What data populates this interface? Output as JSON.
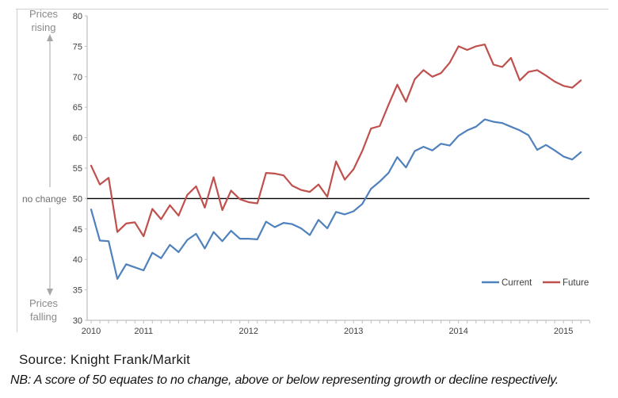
{
  "annotations": {
    "prices_rising_line1": "Prices",
    "prices_rising_line2": "rising",
    "no_change": "no change",
    "prices_falling_line1": "Prices",
    "prices_falling_line2": "falling",
    "label_color": "#8a8a8a",
    "arrow_color": "#a6a6a6"
  },
  "source_line": "Source: Knight Frank/Markit",
  "nb_line": "NB: A score of 50 equates to no change, above or below representing growth or decline respectively.",
  "legend": {
    "items": [
      {
        "label": "Current",
        "color": "#4F81BD"
      },
      {
        "label": "Future",
        "color": "#C0504D"
      }
    ],
    "text_color": "#404040",
    "position": "bottom-right-inside"
  },
  "chart_data": {
    "type": "line",
    "frequency": "monthly",
    "start_month": "2010-07",
    "end_month": "2015-03",
    "ylim": [
      30,
      80
    ],
    "yticks": [
      30,
      35,
      40,
      45,
      50,
      55,
      60,
      65,
      70,
      75,
      80
    ],
    "grid": false,
    "reference_line": {
      "value": 50,
      "label": "no change",
      "color": "#000000"
    },
    "axis_color": "#bfbfbf",
    "tick_label_color": "#404040",
    "x_year_labels": [
      {
        "label": "2010",
        "index": 0
      },
      {
        "label": "2011",
        "index": 6
      },
      {
        "label": "2012",
        "index": 18
      },
      {
        "label": "2013",
        "index": 30
      },
      {
        "label": "2014",
        "index": 42
      },
      {
        "label": "2015",
        "index": 54
      }
    ],
    "series": [
      {
        "name": "Current",
        "color": "#4F81BD",
        "values": [
          48.2,
          43.1,
          43.0,
          36.8,
          39.2,
          38.7,
          38.2,
          41.1,
          40.2,
          42.4,
          41.2,
          43.2,
          44.2,
          41.8,
          44.5,
          43.0,
          44.7,
          43.4,
          43.4,
          43.3,
          46.2,
          45.3,
          46.0,
          45.8,
          45.1,
          44.0,
          46.5,
          45.1,
          47.8,
          47.4,
          47.9,
          49.1,
          51.6,
          52.8,
          54.2,
          56.8,
          55.1,
          57.8,
          58.5,
          57.9,
          59.0,
          58.7,
          60.3,
          61.2,
          61.8,
          63.0,
          62.6,
          62.4,
          61.8,
          61.2,
          60.4,
          58.0,
          58.8,
          57.9,
          56.9,
          56.4,
          57.6
        ]
      },
      {
        "name": "Future",
        "color": "#C0504D",
        "values": [
          55.4,
          52.3,
          53.4,
          44.5,
          45.9,
          46.1,
          43.8,
          48.3,
          46.6,
          48.9,
          47.2,
          50.6,
          52.0,
          48.5,
          53.5,
          48.1,
          51.3,
          49.9,
          49.4,
          49.2,
          54.2,
          54.1,
          53.8,
          52.1,
          51.4,
          51.1,
          52.3,
          50.3,
          56.1,
          53.1,
          54.8,
          57.8,
          61.5,
          61.9,
          65.4,
          68.7,
          65.9,
          69.6,
          71.1,
          70.0,
          70.6,
          72.3,
          75.0,
          74.4,
          75.0,
          75.3,
          72.0,
          71.6,
          73.1,
          69.4,
          70.8,
          71.1,
          70.2,
          69.2,
          68.5,
          68.2,
          69.4
        ]
      }
    ]
  }
}
